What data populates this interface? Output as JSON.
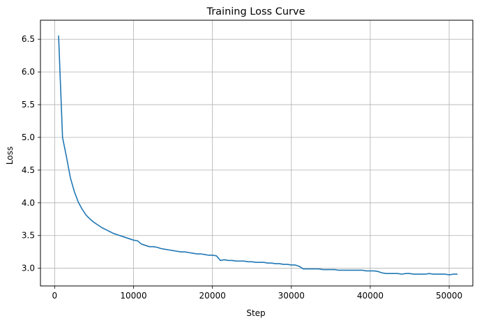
{
  "chart_data": {
    "type": "line",
    "title": "Training Loss Curve",
    "xlabel": "Step",
    "ylabel": "Loss",
    "xlim": [
      -1800,
      53000
    ],
    "ylim": [
      2.73,
      6.79
    ],
    "xticks": [
      0,
      10000,
      20000,
      30000,
      40000,
      50000
    ],
    "yticks": [
      3.0,
      3.5,
      4.0,
      4.5,
      5.0,
      5.5,
      6.0,
      6.5
    ],
    "xtick_labels": [
      "0",
      "10000",
      "20000",
      "30000",
      "40000",
      "50000"
    ],
    "ytick_labels": [
      "3.0",
      "3.5",
      "4.0",
      "4.5",
      "5.0",
      "5.5",
      "6.0",
      "6.5"
    ],
    "grid": true,
    "line_color": "#1f77b4",
    "series": [
      {
        "x": [
          500,
          1000,
          1500,
          2000,
          2500,
          3000,
          3500,
          4000,
          4500,
          5000,
          5500,
          6000,
          6500,
          7000,
          7500,
          8000,
          8500,
          9000,
          9500,
          10000,
          10500,
          11000,
          11500,
          12000,
          12500,
          13000,
          13500,
          14000,
          14500,
          15000,
          15500,
          16000,
          16500,
          17000,
          17500,
          18000,
          18500,
          19000,
          19500,
          20000,
          20500,
          21000,
          21500,
          22000,
          22500,
          23000,
          23500,
          24000,
          24500,
          25000,
          25500,
          26000,
          26500,
          27000,
          27500,
          28000,
          28500,
          29000,
          29500,
          30000,
          30500,
          31000,
          31500,
          32000,
          32500,
          33000,
          33500,
          34000,
          34500,
          35000,
          35500,
          36000,
          36500,
          37000,
          37500,
          38000,
          38500,
          39000,
          39500,
          40000,
          40500,
          41000,
          41500,
          42000,
          42500,
          43000,
          43500,
          44000,
          44500,
          45000,
          45500,
          46000,
          46500,
          47000,
          47500,
          48000,
          48500,
          49000,
          49500,
          50000,
          50500,
          51000
        ],
        "y": [
          6.55,
          5.0,
          4.7,
          4.38,
          4.17,
          4.01,
          3.9,
          3.81,
          3.75,
          3.7,
          3.66,
          3.62,
          3.59,
          3.56,
          3.53,
          3.51,
          3.49,
          3.47,
          3.45,
          3.43,
          3.42,
          3.37,
          3.35,
          3.33,
          3.33,
          3.32,
          3.3,
          3.29,
          3.28,
          3.27,
          3.26,
          3.25,
          3.25,
          3.24,
          3.23,
          3.22,
          3.22,
          3.21,
          3.2,
          3.2,
          3.19,
          3.12,
          3.13,
          3.12,
          3.12,
          3.11,
          3.11,
          3.11,
          3.1,
          3.1,
          3.09,
          3.09,
          3.09,
          3.08,
          3.08,
          3.07,
          3.07,
          3.06,
          3.06,
          3.05,
          3.05,
          3.03,
          2.99,
          2.99,
          2.99,
          2.99,
          2.99,
          2.98,
          2.98,
          2.98,
          2.98,
          2.97,
          2.97,
          2.97,
          2.97,
          2.97,
          2.97,
          2.97,
          2.96,
          2.96,
          2.96,
          2.95,
          2.93,
          2.92,
          2.92,
          2.92,
          2.92,
          2.91,
          2.92,
          2.92,
          2.91,
          2.91,
          2.91,
          2.91,
          2.92,
          2.91,
          2.91,
          2.91,
          2.91,
          2.9,
          2.91,
          2.91
        ]
      }
    ]
  }
}
